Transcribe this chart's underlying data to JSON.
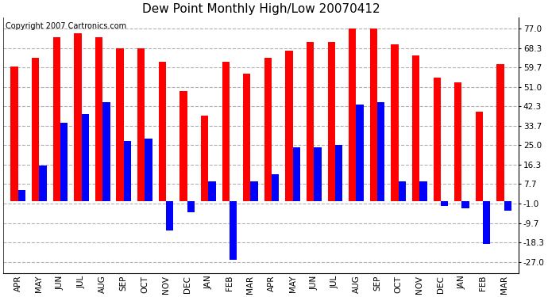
{
  "title": "Dew Point Monthly High/Low 20070412",
  "copyright": "Copyright 2007 Cartronics.com",
  "months": [
    "APR",
    "MAY",
    "JUN",
    "JUL",
    "AUG",
    "SEP",
    "OCT",
    "NOV",
    "DEC",
    "JAN",
    "FEB",
    "MAR",
    "APR",
    "MAY",
    "JUN",
    "JUL",
    "AUG",
    "SEP",
    "OCT",
    "NOV",
    "DEC",
    "JAN",
    "FEB",
    "MAR"
  ],
  "highs": [
    60,
    64,
    73,
    75,
    73,
    68,
    68,
    62,
    49,
    38,
    62,
    57,
    64,
    67,
    71,
    71,
    77,
    77,
    70,
    65,
    55,
    53,
    40,
    61
  ],
  "lows": [
    5,
    16,
    35,
    39,
    44,
    27,
    28,
    -13,
    -5,
    9,
    -26,
    9,
    12,
    24,
    24,
    25,
    43,
    44,
    9,
    9,
    -2,
    -3,
    -19,
    -4
  ],
  "bar_color_high": "#ff0000",
  "bar_color_low": "#0000ff",
  "background_color": "#ffffff",
  "grid_color": "#b0b0b0",
  "yticks": [
    77.0,
    68.3,
    59.7,
    51.0,
    42.3,
    33.7,
    25.0,
    16.3,
    7.7,
    -1.0,
    -9.7,
    -18.3,
    -27.0
  ],
  "ylim": [
    -32,
    82
  ],
  "title_fontsize": 11,
  "tick_fontsize": 7.5,
  "copyright_fontsize": 7
}
